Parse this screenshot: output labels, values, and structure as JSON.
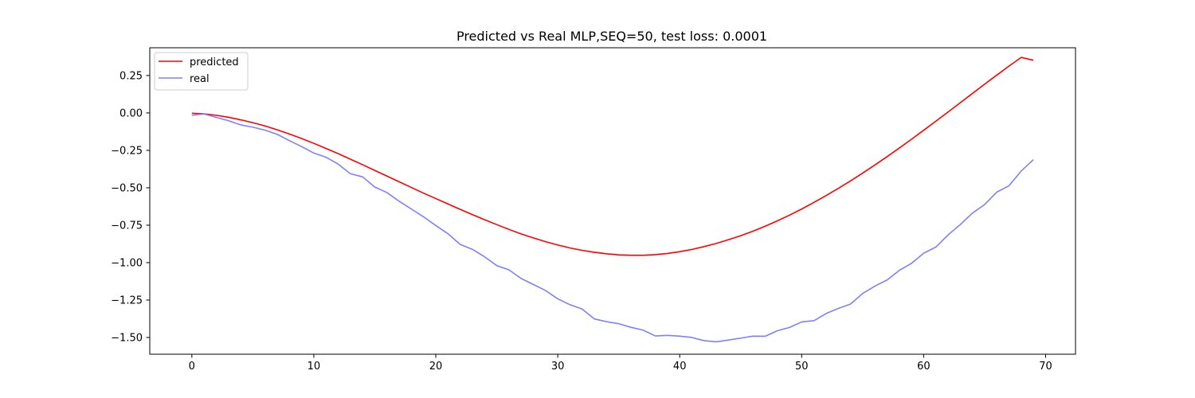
{
  "chart_data": {
    "type": "line",
    "title": "Predicted vs Real MLP,SEQ=50, test loss: 0.0001",
    "xlabel": "",
    "ylabel": "",
    "xlim": [
      -3.45,
      72.45
    ],
    "ylim": [
      -1.6118,
      0.4354
    ],
    "xticks": [
      0,
      10,
      20,
      30,
      40,
      50,
      60,
      70
    ],
    "yticks": [
      0.25,
      0.0,
      -0.25,
      -0.5,
      -0.75,
      -1.0,
      -1.25,
      -1.5
    ],
    "ytick_labels": [
      "0.25",
      "0.00",
      "−0.25",
      "−0.50",
      "−0.75",
      "−1.00",
      "−1.25",
      "−1.50"
    ],
    "legend_position": "upper-left",
    "grid": false,
    "x": [
      0,
      1,
      2,
      3,
      4,
      5,
      6,
      7,
      8,
      9,
      10,
      11,
      12,
      13,
      14,
      15,
      16,
      17,
      18,
      19,
      20,
      21,
      22,
      23,
      24,
      25,
      26,
      27,
      28,
      29,
      30,
      31,
      32,
      33,
      34,
      35,
      36,
      37,
      38,
      39,
      40,
      41,
      42,
      43,
      44,
      45,
      46,
      47,
      48,
      49,
      50,
      51,
      52,
      53,
      54,
      55,
      56,
      57,
      58,
      59,
      60,
      61,
      62,
      63,
      64,
      65,
      66,
      67,
      68,
      69
    ],
    "series": [
      {
        "name": "predicted",
        "color": "#ff0000",
        "opacity": 1.0,
        "values": [
          -0.002,
          -0.006,
          -0.016,
          -0.029,
          -0.046,
          -0.065,
          -0.087,
          -0.113,
          -0.141,
          -0.171,
          -0.203,
          -0.237,
          -0.272,
          -0.309,
          -0.346,
          -0.384,
          -0.422,
          -0.46,
          -0.498,
          -0.536,
          -0.572,
          -0.608,
          -0.644,
          -0.679,
          -0.713,
          -0.746,
          -0.778,
          -0.808,
          -0.835,
          -0.86,
          -0.882,
          -0.902,
          -0.918,
          -0.931,
          -0.941,
          -0.948,
          -0.951,
          -0.951,
          -0.947,
          -0.939,
          -0.927,
          -0.912,
          -0.893,
          -0.872,
          -0.847,
          -0.82,
          -0.79,
          -0.757,
          -0.721,
          -0.683,
          -0.642,
          -0.598,
          -0.552,
          -0.504,
          -0.454,
          -0.402,
          -0.348,
          -0.292,
          -0.235,
          -0.176,
          -0.116,
          -0.055,
          0.006,
          0.068,
          0.13,
          0.192,
          0.253,
          0.313,
          0.371,
          0.352
        ]
      },
      {
        "name": "real",
        "color": "#7f7fff",
        "opacity": 1.0,
        "values": [
          -0.015,
          -0.007,
          -0.03,
          -0.052,
          -0.08,
          -0.095,
          -0.115,
          -0.143,
          -0.185,
          -0.225,
          -0.268,
          -0.296,
          -0.342,
          -0.406,
          -0.427,
          -0.495,
          -0.532,
          -0.59,
          -0.642,
          -0.694,
          -0.752,
          -0.807,
          -0.878,
          -0.911,
          -0.961,
          -1.02,
          -1.048,
          -1.106,
          -1.146,
          -1.186,
          -1.242,
          -1.281,
          -1.31,
          -1.376,
          -1.394,
          -1.408,
          -1.432,
          -1.451,
          -1.49,
          -1.486,
          -1.491,
          -1.5,
          -1.521,
          -1.529,
          -1.517,
          -1.504,
          -1.491,
          -1.492,
          -1.455,
          -1.433,
          -1.396,
          -1.388,
          -1.34,
          -1.306,
          -1.277,
          -1.206,
          -1.157,
          -1.116,
          -1.052,
          -1.005,
          -0.937,
          -0.896,
          -0.815,
          -0.746,
          -0.669,
          -0.612,
          -0.529,
          -0.486,
          -0.388,
          -0.312
        ]
      }
    ]
  }
}
